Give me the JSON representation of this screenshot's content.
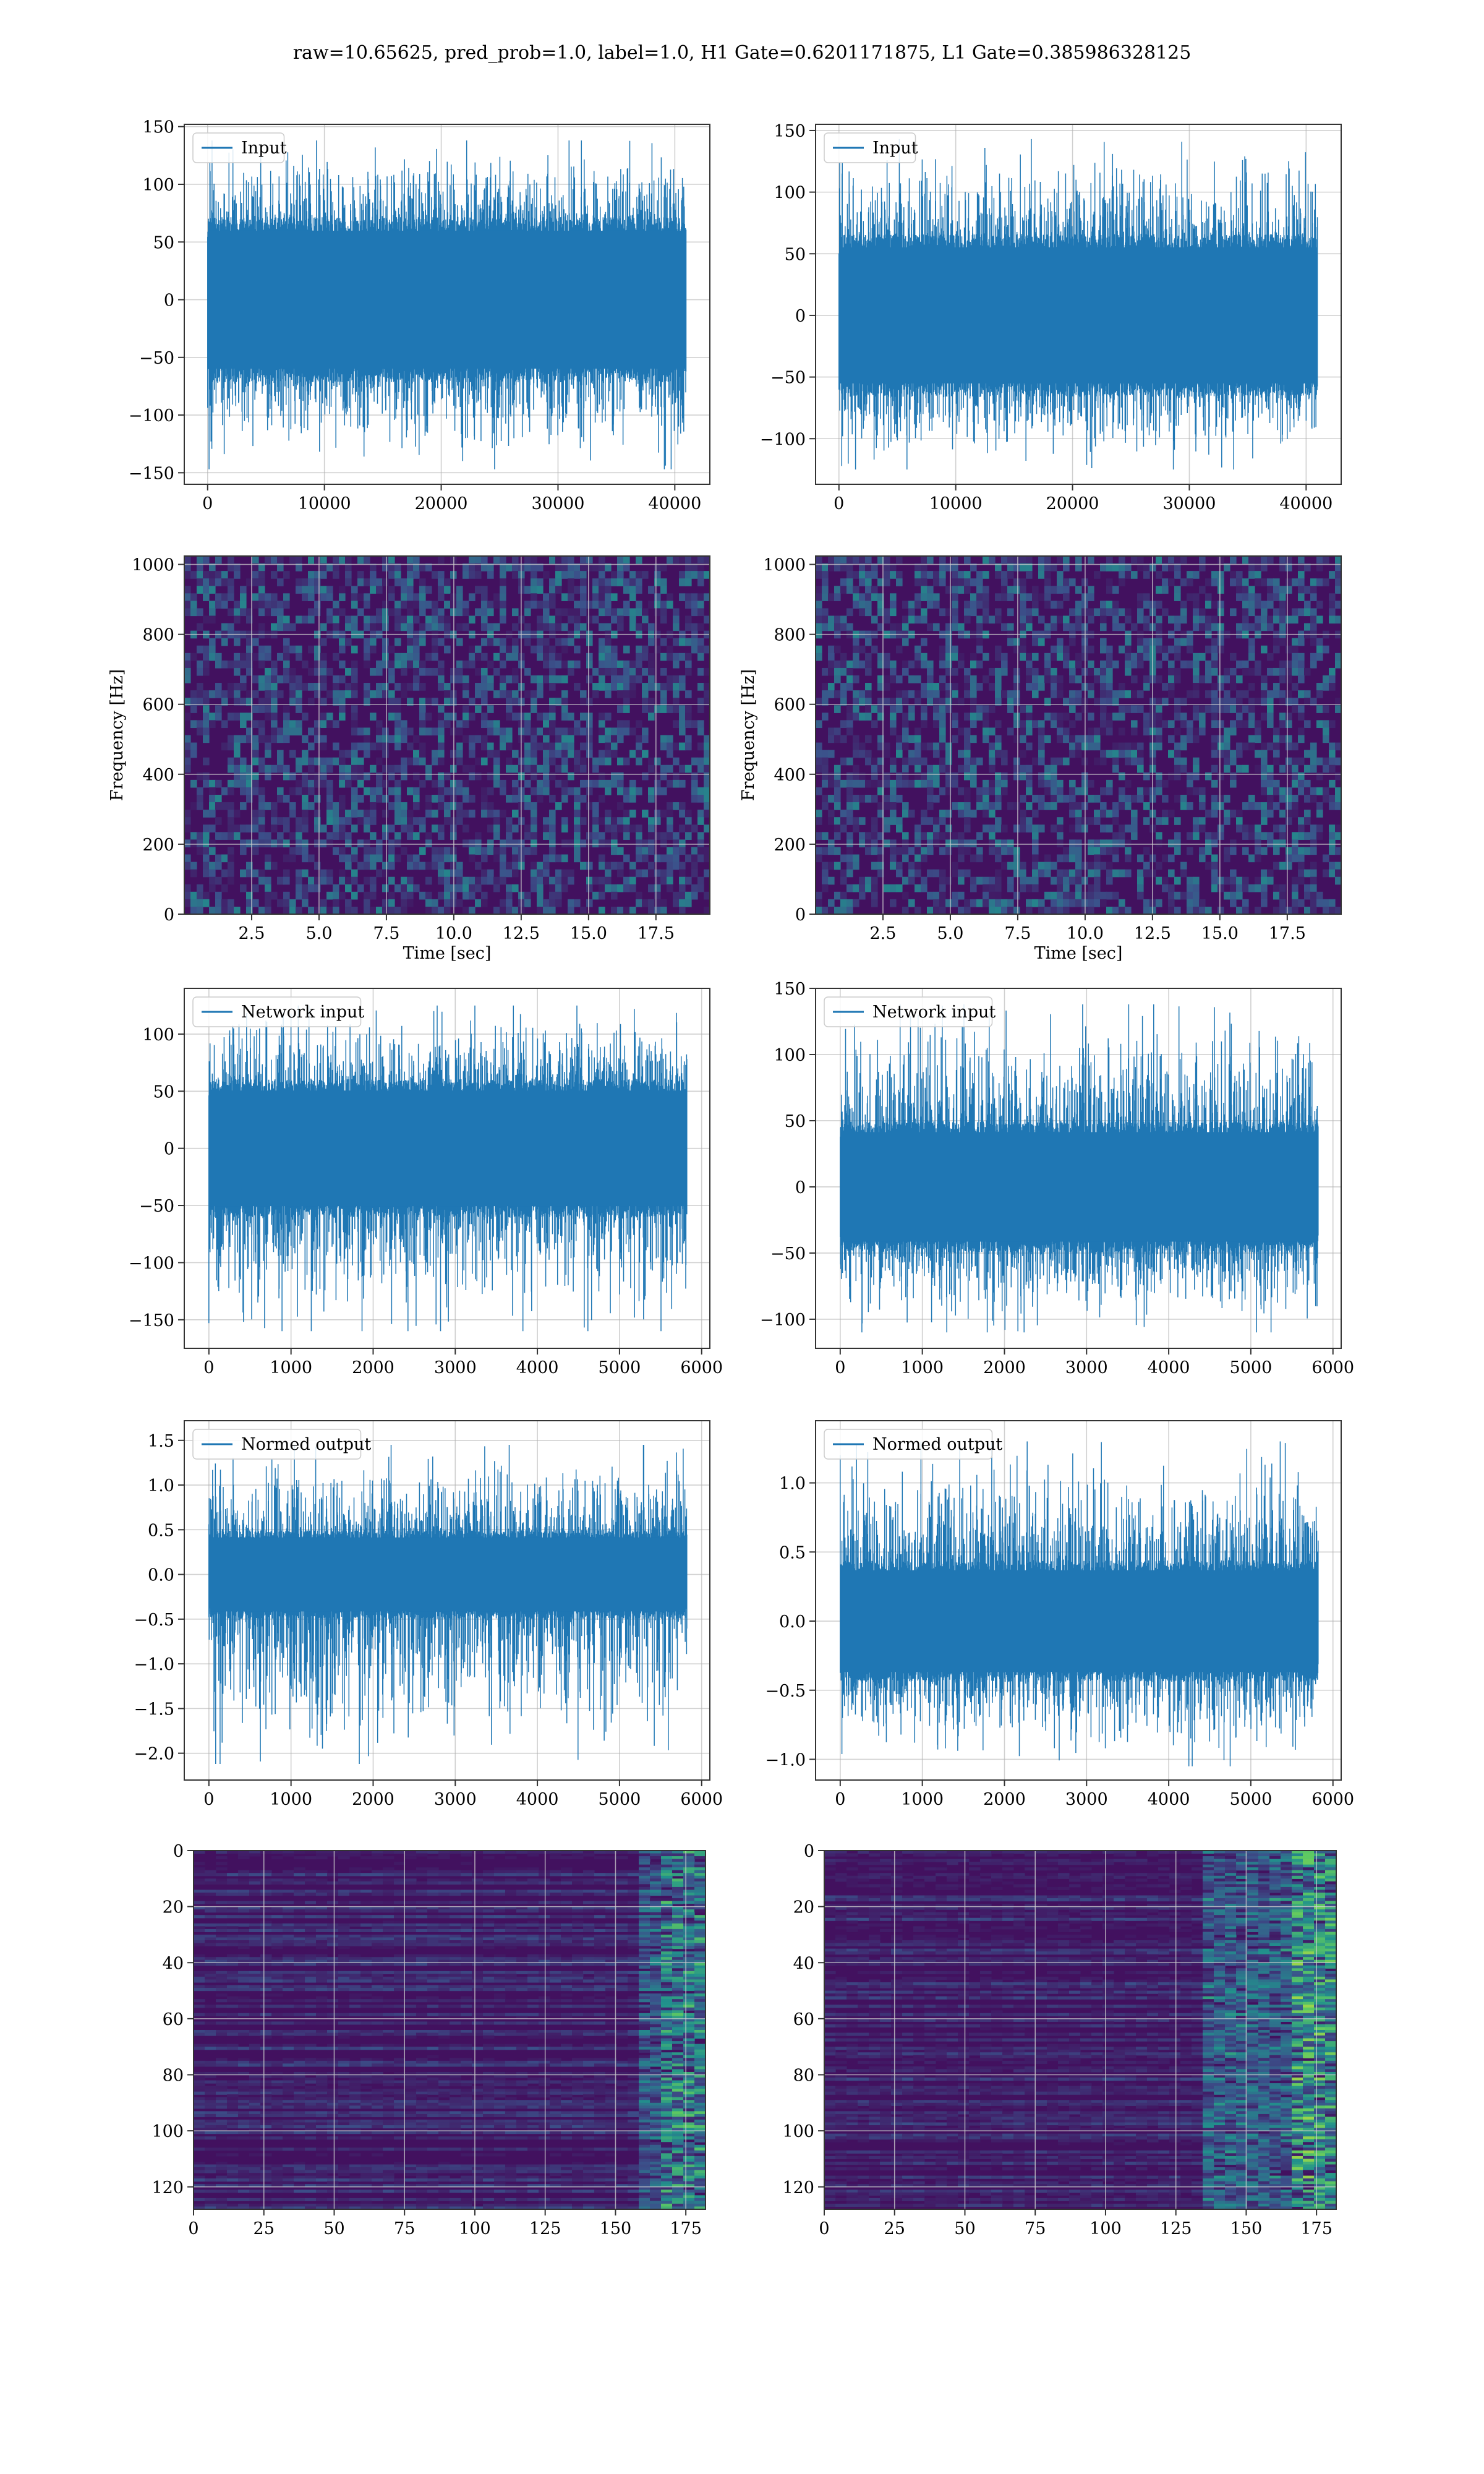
{
  "figure": {
    "title": "raw=10.65625, pred_prob=1.0, label=1.0, H1 Gate=0.6201171875, L1 Gate=0.385986328125",
    "colors": {
      "line": "#1f77b4",
      "grid": "#b0b0b0",
      "axes": "#333333"
    }
  },
  "chart_data": [
    {
      "id": "h1_input",
      "type": "line",
      "title": "",
      "xlabel": "",
      "ylabel": "",
      "legend": [
        "Input"
      ],
      "legend_placement": "top-left",
      "xlim": [
        -2000,
        43000
      ],
      "ylim": [
        -160,
        152
      ],
      "xticks": [
        0,
        10000,
        20000,
        30000,
        40000
      ],
      "yticks": [
        -150,
        -100,
        -50,
        0,
        50,
        100,
        150
      ],
      "grid": true,
      "series": [
        {
          "name": "Input",
          "n": 40960,
          "x_range": [
            0,
            40960
          ],
          "band": [
            -65,
            65
          ],
          "spike_range": [
            -147,
            138
          ]
        }
      ]
    },
    {
      "id": "l1_input",
      "type": "line",
      "title": "",
      "xlabel": "",
      "ylabel": "",
      "legend": [
        "Input"
      ],
      "legend_placement": "top-left",
      "xlim": [
        -2000,
        43000
      ],
      "ylim": [
        -137,
        155
      ],
      "xticks": [
        0,
        10000,
        20000,
        30000,
        40000
      ],
      "yticks": [
        -100,
        -50,
        0,
        50,
        100,
        150
      ],
      "grid": true,
      "series": [
        {
          "name": "Input",
          "n": 40960,
          "x_range": [
            0,
            40960
          ],
          "band": [
            -60,
            60
          ],
          "spike_range": [
            -125,
            143
          ]
        }
      ]
    },
    {
      "id": "h1_spectrogram",
      "type": "heatmap",
      "title": "",
      "xlabel": "Time [sec]",
      "ylabel": "Frequency [Hz]",
      "xlim": [
        0,
        19.5
      ],
      "ylim": [
        0,
        1024
      ],
      "xticks": [
        "2.5",
        "5.0",
        "7.5",
        "10.0",
        "12.5",
        "15.0",
        "17.5"
      ],
      "yticks": [
        0,
        200,
        400,
        600,
        800,
        1000
      ],
      "grid": true,
      "colormap": "viridis"
    },
    {
      "id": "l1_spectrogram",
      "type": "heatmap",
      "title": "",
      "xlabel": "Time [sec]",
      "ylabel": "Frequency [Hz]",
      "xlim": [
        0,
        19.5
      ],
      "ylim": [
        0,
        1024
      ],
      "xticks": [
        "2.5",
        "5.0",
        "7.5",
        "10.0",
        "12.5",
        "15.0",
        "17.5"
      ],
      "yticks": [
        0,
        200,
        400,
        600,
        800,
        1000
      ],
      "grid": true,
      "colormap": "viridis"
    },
    {
      "id": "h1_network_input",
      "type": "line",
      "title": "",
      "xlabel": "",
      "ylabel": "",
      "legend": [
        "Network input"
      ],
      "legend_placement": "top-left",
      "xlim": [
        -300,
        6100
      ],
      "ylim": [
        -175,
        140
      ],
      "xticks": [
        0,
        1000,
        2000,
        3000,
        4000,
        5000,
        6000
      ],
      "yticks": [
        -150,
        -100,
        -50,
        0,
        50,
        100
      ],
      "grid": true,
      "series": [
        {
          "name": "Network input",
          "n": 5820,
          "x_range": [
            0,
            5820
          ],
          "band": [
            -55,
            55
          ],
          "spike_range": [
            -160,
            125
          ]
        }
      ]
    },
    {
      "id": "l1_network_input",
      "type": "line",
      "title": "",
      "xlabel": "",
      "ylabel": "",
      "legend": [
        "Network input"
      ],
      "legend_placement": "top-left",
      "xlim": [
        -300,
        6100
      ],
      "ylim": [
        -122,
        150
      ],
      "xticks": [
        0,
        1000,
        2000,
        3000,
        4000,
        5000,
        6000
      ],
      "yticks": [
        -100,
        -50,
        0,
        50,
        100,
        150
      ],
      "grid": true,
      "series": [
        {
          "name": "Network input",
          "n": 5820,
          "x_range": [
            0,
            5820
          ],
          "band": [
            -45,
            45
          ],
          "spike_range": [
            -110,
            138
          ]
        }
      ]
    },
    {
      "id": "h1_normed_output",
      "type": "line",
      "title": "",
      "xlabel": "",
      "ylabel": "",
      "legend": [
        "Normed output"
      ],
      "legend_placement": "top-left",
      "xlim": [
        -300,
        6100
      ],
      "ylim": [
        -2.3,
        1.72
      ],
      "xticks": [
        0,
        1000,
        2000,
        3000,
        4000,
        5000,
        6000
      ],
      "yticks": [
        -2.0,
        -1.5,
        -1.0,
        -0.5,
        0.0,
        0.5,
        1.0,
        1.5
      ],
      "ytick_labels": [
        "−2.0",
        "−1.5",
        "−1.0",
        "−0.5",
        "0.0",
        "0.5",
        "1.0",
        "1.5"
      ],
      "grid": true,
      "series": [
        {
          "name": "Normed output",
          "n": 5820,
          "x_range": [
            0,
            5820
          ],
          "band": [
            -0.45,
            0.45
          ],
          "spike_range": [
            -2.12,
            1.45
          ]
        }
      ]
    },
    {
      "id": "l1_normed_output",
      "type": "line",
      "title": "",
      "xlabel": "",
      "ylabel": "",
      "legend": [
        "Normed output"
      ],
      "legend_placement": "top-left",
      "xlim": [
        -300,
        6100
      ],
      "ylim": [
        -1.15,
        1.45
      ],
      "xticks": [
        0,
        1000,
        2000,
        3000,
        4000,
        5000,
        6000
      ],
      "yticks": [
        -1.0,
        -0.5,
        0.0,
        0.5,
        1.0
      ],
      "ytick_labels": [
        "−1.0",
        "−0.5",
        "0.0",
        "0.5",
        "1.0"
      ],
      "grid": true,
      "series": [
        {
          "name": "Normed output",
          "n": 5820,
          "x_range": [
            0,
            5820
          ],
          "band": [
            -0.4,
            0.4
          ],
          "spike_range": [
            -1.05,
            1.3
          ]
        }
      ]
    },
    {
      "id": "h1_feature_map",
      "type": "heatmap",
      "title": "",
      "xlabel": "",
      "ylabel": "",
      "xlim": [
        0,
        182
      ],
      "ylim": [
        128,
        0
      ],
      "xticks": [
        0,
        25,
        50,
        75,
        100,
        125,
        150,
        175
      ],
      "yticks": [
        0,
        20,
        40,
        60,
        80,
        100,
        120
      ],
      "grid": true,
      "colormap": "viridis",
      "rows": 128,
      "cols": 182
    },
    {
      "id": "l1_feature_map",
      "type": "heatmap",
      "title": "",
      "xlabel": "",
      "ylabel": "",
      "xlim": [
        0,
        182
      ],
      "ylim": [
        128,
        0
      ],
      "xticks": [
        0,
        25,
        50,
        75,
        100,
        125,
        150,
        175
      ],
      "yticks": [
        0,
        20,
        40,
        60,
        80,
        100,
        120
      ],
      "grid": true,
      "colormap": "viridis",
      "rows": 128,
      "cols": 182
    }
  ]
}
